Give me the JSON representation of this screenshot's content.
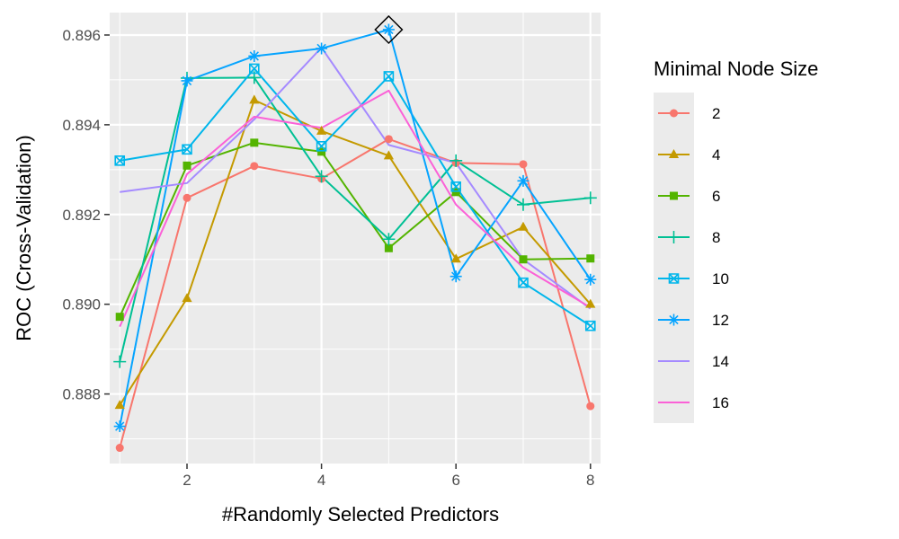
{
  "chart_data": {
    "type": "line",
    "xlabel": "#Randomly Selected Predictors",
    "ylabel": "ROC (Cross-Validation)",
    "xlim": [
      0.85,
      8.15
    ],
    "ylim": [
      0.88645,
      0.8965
    ],
    "x_ticks": [
      2,
      4,
      6,
      8
    ],
    "y_ticks": [
      0.888,
      0.89,
      0.892,
      0.894,
      0.896
    ],
    "x_tick_labels": [
      "2",
      "4",
      "6",
      "8"
    ],
    "y_tick_labels": [
      "0.888",
      "0.890",
      "0.892",
      "0.894",
      "0.896"
    ],
    "grid": true,
    "legend": {
      "title": "Minimal Node Size",
      "placement": "right"
    },
    "x": [
      1,
      2,
      3,
      4,
      5,
      6,
      7,
      8
    ],
    "series": [
      {
        "name": "2",
        "color": "#F8766D",
        "marker": "circle",
        "values": [
          0.8868,
          0.89237,
          0.89308,
          0.8928,
          0.89368,
          0.89315,
          0.89312,
          0.88773
        ]
      },
      {
        "name": "4",
        "color": "#C49A00",
        "marker": "triangle",
        "values": [
          0.88775,
          0.89013,
          0.89455,
          0.89386,
          0.89331,
          0.89101,
          0.89172,
          0.89
        ]
      },
      {
        "name": "6",
        "color": "#53B400",
        "marker": "square",
        "values": [
          0.88972,
          0.89309,
          0.8936,
          0.8934,
          0.89125,
          0.8925,
          0.891,
          0.89102
        ]
      },
      {
        "name": "8",
        "color": "#00C094",
        "marker": "plus",
        "values": [
          0.88872,
          0.89504,
          0.89505,
          0.89285,
          0.89145,
          0.8932,
          0.89222,
          0.89237
        ]
      },
      {
        "name": "10",
        "color": "#00B6EB",
        "marker": "square-cross",
        "values": [
          0.8932,
          0.89345,
          0.89525,
          0.89352,
          0.89508,
          0.89262,
          0.89048,
          0.88952
        ]
      },
      {
        "name": "12",
        "color": "#06A4FF",
        "marker": "asterisk",
        "values": [
          0.88728,
          0.89498,
          0.89553,
          0.8957,
          0.89612,
          0.89062,
          0.89275,
          0.89055
        ]
      },
      {
        "name": "14",
        "color": "#A58AFF",
        "marker": "none",
        "values": [
          0.8925,
          0.8927,
          0.89412,
          0.89572,
          0.89355,
          0.89315,
          0.891,
          0.8899
        ]
      },
      {
        "name": "16",
        "color": "#FB61D7",
        "marker": "none",
        "values": [
          0.8895,
          0.8929,
          0.89418,
          0.89393,
          0.89476,
          0.89222,
          0.89082,
          0.88993
        ]
      }
    ],
    "highlight": {
      "x": 5,
      "y": 0.89612,
      "marker": "diamond"
    }
  }
}
